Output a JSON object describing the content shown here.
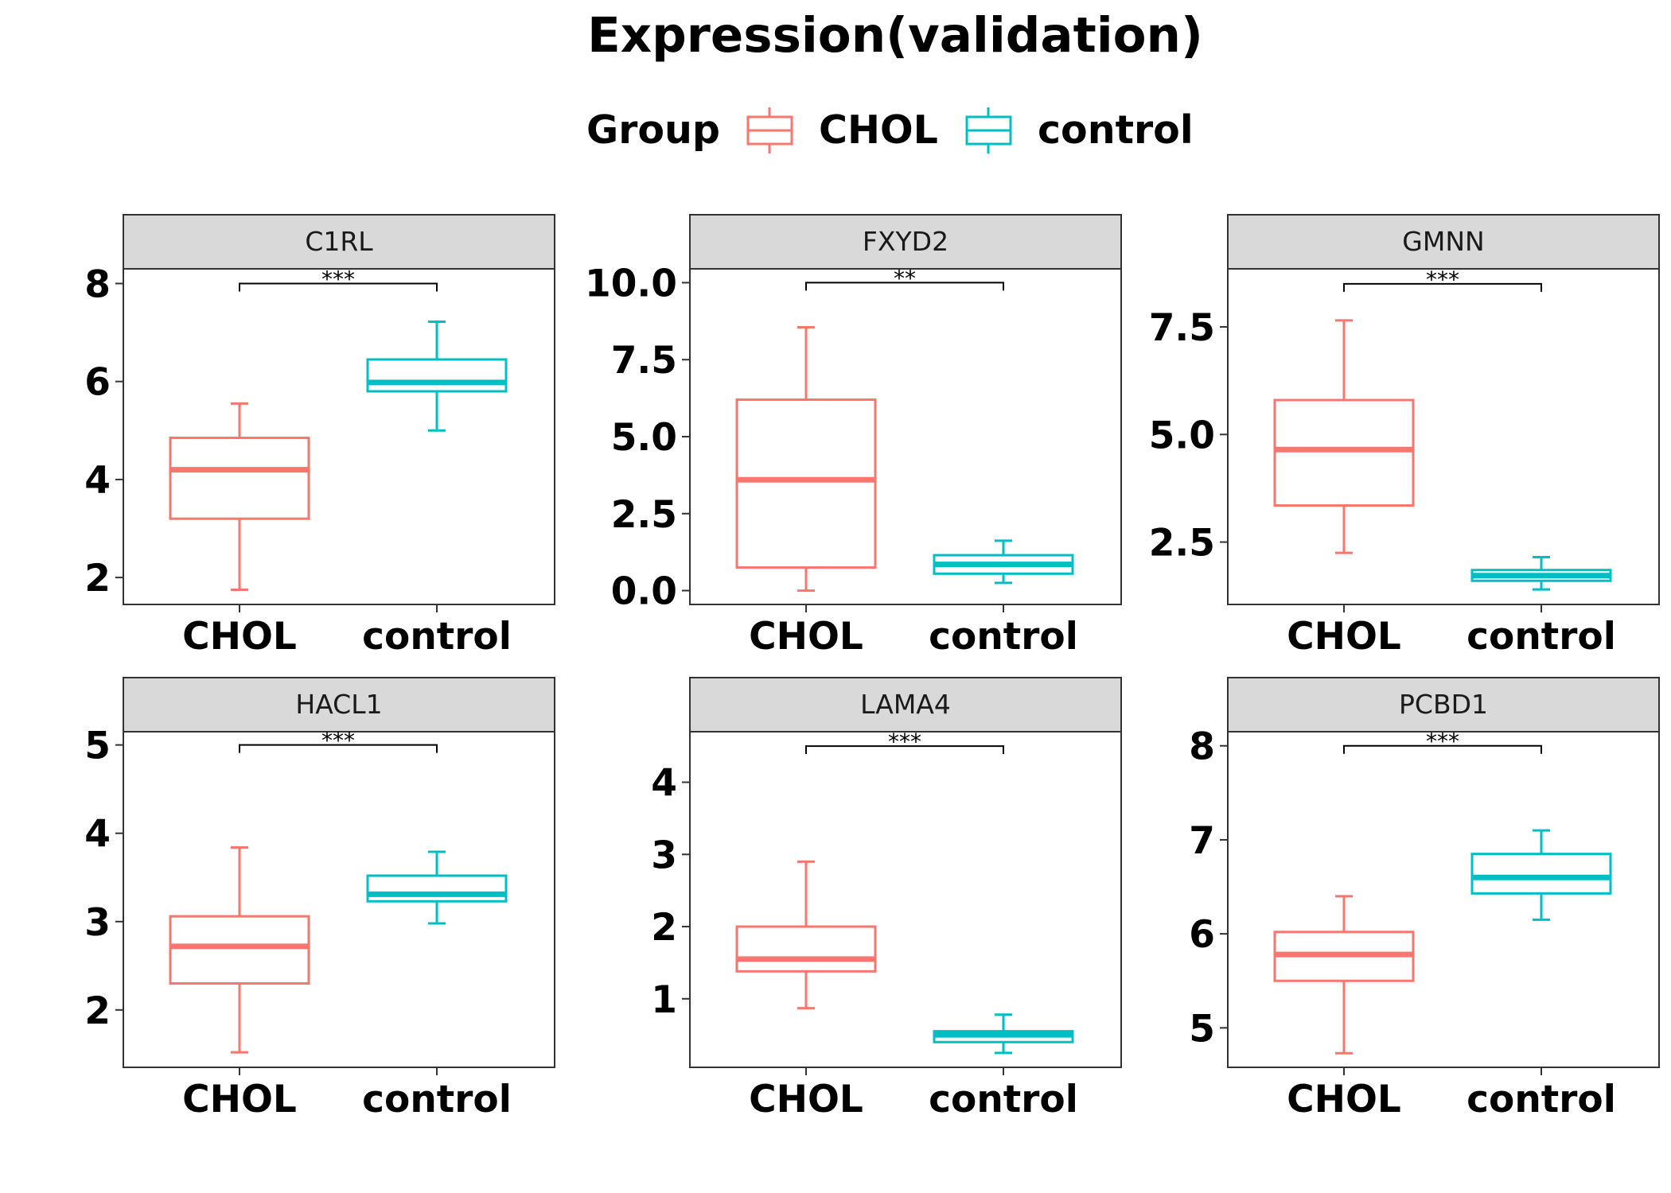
{
  "title": "Expression(validation)",
  "legend": {
    "title": "Group",
    "items": [
      {
        "label": "CHOL",
        "color": "#F8766D"
      },
      {
        "label": "control",
        "color": "#00BFC4"
      }
    ]
  },
  "chart_data": {
    "type": "boxplot",
    "categories": [
      "CHOL",
      "control"
    ],
    "colors": {
      "CHOL": "#F8766D",
      "control": "#00BFC4"
    },
    "panels": [
      {
        "name": "C1RL",
        "ylim": [
          1.45,
          8.3
        ],
        "yticks": [
          2,
          4,
          6,
          8
        ],
        "ytick_labels": [
          "2",
          "4",
          "6",
          "8"
        ],
        "significance": {
          "label": "***",
          "y": 8.0
        },
        "boxes": [
          {
            "group": "CHOL",
            "min": 1.75,
            "q1": 3.2,
            "median": 4.2,
            "q3": 4.85,
            "max": 5.55
          },
          {
            "group": "control",
            "min": 5.0,
            "q1": 5.8,
            "median": 5.98,
            "q3": 6.45,
            "max": 7.22
          }
        ]
      },
      {
        "name": "FXYD2",
        "ylim": [
          -0.45,
          10.45
        ],
        "yticks": [
          0,
          2.5,
          5,
          7.5,
          10
        ],
        "ytick_labels": [
          "0.0",
          "2.5",
          "5.0",
          "7.5",
          "10.0"
        ],
        "significance": {
          "label": "**",
          "y": 10.0
        },
        "boxes": [
          {
            "group": "CHOL",
            "min": 0.0,
            "q1": 0.75,
            "median": 3.6,
            "q3": 6.2,
            "max": 8.55
          },
          {
            "group": "control",
            "min": 0.25,
            "q1": 0.55,
            "median": 0.85,
            "q3": 1.15,
            "max": 1.62
          }
        ]
      },
      {
        "name": "GMNN",
        "ylim": [
          1.05,
          8.85
        ],
        "yticks": [
          2.5,
          5,
          7.5
        ],
        "ytick_labels": [
          "2.5",
          "5.0",
          "7.5"
        ],
        "significance": {
          "label": "***",
          "y": 8.5
        },
        "boxes": [
          {
            "group": "CHOL",
            "min": 2.25,
            "q1": 3.35,
            "median": 4.65,
            "q3": 5.8,
            "max": 7.65
          },
          {
            "group": "control",
            "min": 1.4,
            "q1": 1.6,
            "median": 1.72,
            "q3": 1.85,
            "max": 2.15
          }
        ]
      },
      {
        "name": "HACL1",
        "ylim": [
          1.35,
          5.15
        ],
        "yticks": [
          2,
          3,
          4,
          5
        ],
        "ytick_labels": [
          "2",
          "3",
          "4",
          "5"
        ],
        "significance": {
          "label": "***",
          "y": 5.0
        },
        "boxes": [
          {
            "group": "CHOL",
            "min": 1.52,
            "q1": 2.3,
            "median": 2.72,
            "q3": 3.06,
            "max": 3.84
          },
          {
            "group": "control",
            "min": 2.98,
            "q1": 3.23,
            "median": 3.31,
            "q3": 3.52,
            "max": 3.79
          }
        ]
      },
      {
        "name": "LAMA4",
        "ylim": [
          0.05,
          4.7
        ],
        "yticks": [
          1,
          2,
          3,
          4
        ],
        "ytick_labels": [
          "1",
          "2",
          "3",
          "4"
        ],
        "significance": {
          "label": "***",
          "y": 4.5
        },
        "boxes": [
          {
            "group": "CHOL",
            "min": 0.87,
            "q1": 1.38,
            "median": 1.55,
            "q3": 2.0,
            "max": 2.9
          },
          {
            "group": "control",
            "min": 0.25,
            "q1": 0.4,
            "median": 0.5,
            "q3": 0.55,
            "max": 0.78
          }
        ]
      },
      {
        "name": "PCBD1",
        "ylim": [
          4.58,
          8.15
        ],
        "yticks": [
          5,
          6,
          7,
          8
        ],
        "ytick_labels": [
          "5",
          "6",
          "7",
          "8"
        ],
        "significance": {
          "label": "***",
          "y": 8.0
        },
        "boxes": [
          {
            "group": "CHOL",
            "min": 4.73,
            "q1": 5.5,
            "median": 5.78,
            "q3": 6.02,
            "max": 6.4
          },
          {
            "group": "control",
            "min": 6.15,
            "q1": 6.43,
            "median": 6.6,
            "q3": 6.85,
            "max": 7.1
          }
        ]
      }
    ]
  }
}
